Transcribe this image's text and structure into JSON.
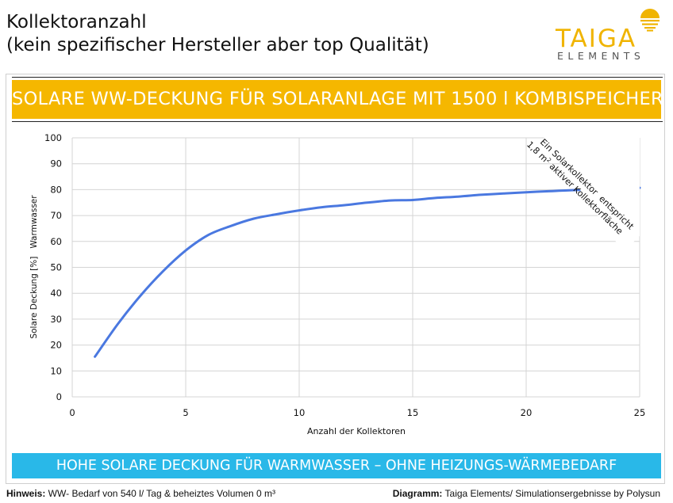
{
  "header": {
    "title_line1": "Kollektoranzahl",
    "title_line2": "(kein spezifischer Hersteller aber top Qualität)"
  },
  "logo": {
    "name": "TAIGA",
    "sub": "ELEMENTS",
    "color": "#f0b400"
  },
  "banner_top": {
    "text": "SOLARE WW-DECKUNG FÜR SOLARANLAGE MIT 1500 l KOMBISPEICHER",
    "color": "#f5b700"
  },
  "banner_bottom": {
    "text": "HOHE SOLARE DECKUNG FÜR WARMWASSER – OHNE HEIZUNGS-WÄRMEBEDARF",
    "color": "#29b8e8"
  },
  "footer": {
    "left_label": "Hinweis:",
    "left_text": " WW- Bedarf von 540 l/ Tag & beheiztes Volumen 0 m³",
    "right_label": "Diagramm:",
    "right_text": " Taiga Elements/ Simulationsergebnisse by Polysun"
  },
  "chart_data": {
    "type": "line",
    "title": "",
    "xlabel": "Anzahl der Kollektoren",
    "ylabel": "Solare Deckung [%]   Warmwasser",
    "xlim": [
      0,
      25
    ],
    "ylim": [
      0,
      100
    ],
    "xticks": [
      0,
      5,
      10,
      15,
      20,
      25
    ],
    "yticks": [
      0,
      10,
      20,
      30,
      40,
      50,
      60,
      70,
      80,
      90,
      100
    ],
    "grid": true,
    "series": [
      {
        "color": "#4a78e0",
        "x": [
          1,
          2,
          3,
          4,
          5,
          6,
          7,
          8,
          9,
          10,
          11,
          12,
          13,
          14,
          15,
          16,
          17,
          18,
          19,
          20,
          21,
          22,
          23,
          24,
          25
        ],
        "y": [
          15.5,
          28,
          39,
          48.5,
          56.5,
          62.5,
          66,
          68.8,
          70.5,
          72,
          73.2,
          74,
          75,
          75.8,
          76,
          76.8,
          77.3,
          78,
          78.5,
          79,
          79.4,
          79.8,
          80.1,
          80.4,
          80.7
        ]
      }
    ],
    "annotation": {
      "line1": "Ein Solarkollektor  entspricht",
      "line2_prefix": "1,8 m",
      "line2_sup": "2",
      "line2_suffix": " aktiver Kollektorfläche"
    }
  }
}
